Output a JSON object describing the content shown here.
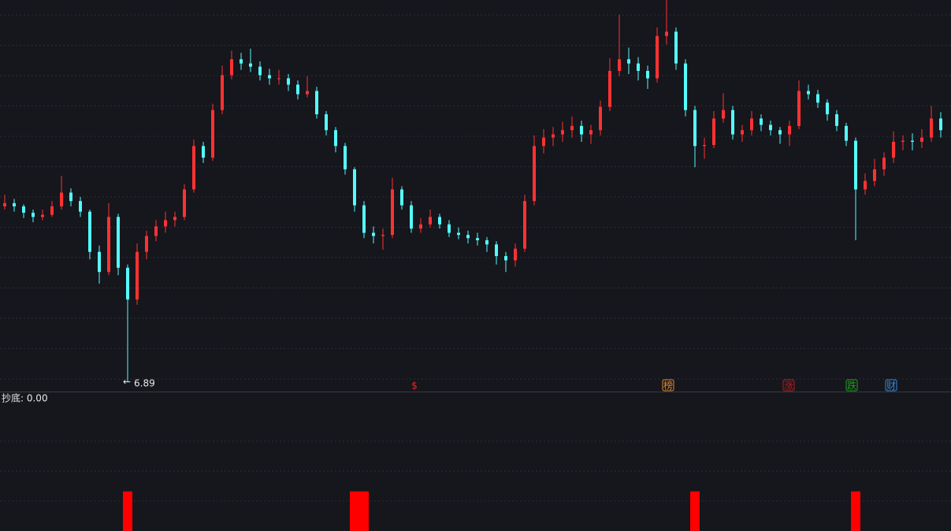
{
  "chart_data": {
    "type": "candlestick",
    "ylim": [
      6.8,
      10.5
    ],
    "up_color": "#ff3232",
    "down_color": "#54fcfc",
    "low_label_index": 13,
    "ohlc": [
      [
        8.55,
        8.66,
        8.52,
        8.58
      ],
      [
        8.58,
        8.62,
        8.5,
        8.55
      ],
      [
        8.55,
        8.57,
        8.44,
        8.49
      ],
      [
        8.49,
        8.52,
        8.4,
        8.45
      ],
      [
        8.45,
        8.52,
        8.42,
        8.47
      ],
      [
        8.47,
        8.6,
        8.45,
        8.55
      ],
      [
        8.55,
        8.84,
        8.52,
        8.68
      ],
      [
        8.68,
        8.72,
        8.55,
        8.6
      ],
      [
        8.6,
        8.64,
        8.45,
        8.5
      ],
      [
        8.5,
        8.52,
        8.05,
        8.12
      ],
      [
        8.12,
        8.18,
        7.82,
        7.93
      ],
      [
        7.93,
        8.58,
        7.9,
        8.45
      ],
      [
        8.45,
        8.48,
        7.9,
        7.97
      ],
      [
        7.97,
        8.0,
        6.89,
        7.67
      ],
      [
        7.67,
        8.2,
        7.62,
        8.12
      ],
      [
        8.12,
        8.32,
        8.05,
        8.27
      ],
      [
        8.27,
        8.42,
        8.22,
        8.36
      ],
      [
        8.36,
        8.5,
        8.3,
        8.42
      ],
      [
        8.42,
        8.5,
        8.36,
        8.45
      ],
      [
        8.45,
        8.76,
        8.42,
        8.71
      ],
      [
        8.71,
        9.18,
        8.68,
        9.12
      ],
      [
        9.12,
        9.16,
        8.96,
        9.01
      ],
      [
        9.01,
        9.52,
        8.98,
        9.46
      ],
      [
        9.46,
        9.88,
        9.42,
        9.79
      ],
      [
        9.79,
        10.02,
        9.75,
        9.94
      ],
      [
        9.94,
        10.0,
        9.84,
        9.9
      ],
      [
        9.9,
        10.04,
        9.82,
        9.87
      ],
      [
        9.87,
        9.92,
        9.74,
        9.79
      ],
      [
        9.79,
        9.85,
        9.7,
        9.76
      ],
      [
        9.76,
        9.84,
        9.7,
        9.76
      ],
      [
        9.76,
        9.8,
        9.64,
        9.7
      ],
      [
        9.7,
        9.74,
        9.56,
        9.61
      ],
      [
        9.61,
        9.78,
        9.58,
        9.64
      ],
      [
        9.64,
        9.68,
        9.38,
        9.42
      ],
      [
        9.42,
        9.45,
        9.22,
        9.27
      ],
      [
        9.27,
        9.3,
        9.06,
        9.12
      ],
      [
        9.12,
        9.15,
        8.85,
        8.9
      ],
      [
        8.9,
        8.92,
        8.5,
        8.56
      ],
      [
        8.56,
        8.6,
        8.25,
        8.3
      ],
      [
        8.3,
        8.36,
        8.2,
        8.27
      ],
      [
        8.27,
        8.34,
        8.14,
        8.28
      ],
      [
        8.28,
        8.82,
        8.25,
        8.71
      ],
      [
        8.71,
        8.74,
        8.52,
        8.56
      ],
      [
        8.56,
        8.6,
        8.3,
        8.34
      ],
      [
        8.34,
        8.44,
        8.3,
        8.38
      ],
      [
        8.38,
        8.52,
        8.35,
        8.45
      ],
      [
        8.45,
        8.48,
        8.34,
        8.38
      ],
      [
        8.38,
        8.42,
        8.26,
        8.3
      ],
      [
        8.3,
        8.35,
        8.24,
        8.28
      ],
      [
        8.28,
        8.32,
        8.2,
        8.25
      ],
      [
        8.25,
        8.3,
        8.18,
        8.23
      ],
      [
        8.23,
        8.26,
        8.12,
        8.19
      ],
      [
        8.19,
        8.22,
        8.0,
        8.08
      ],
      [
        8.08,
        8.12,
        7.93,
        8.04
      ],
      [
        8.04,
        8.2,
        7.98,
        8.15
      ],
      [
        8.15,
        8.66,
        8.12,
        8.6
      ],
      [
        8.6,
        9.22,
        8.56,
        9.12
      ],
      [
        9.12,
        9.28,
        9.05,
        9.2
      ],
      [
        9.2,
        9.3,
        9.12,
        9.23
      ],
      [
        9.23,
        9.35,
        9.16,
        9.27
      ],
      [
        9.27,
        9.4,
        9.2,
        9.31
      ],
      [
        9.31,
        9.36,
        9.16,
        9.23
      ],
      [
        9.23,
        9.32,
        9.14,
        9.27
      ],
      [
        9.27,
        9.55,
        9.22,
        9.49
      ],
      [
        9.49,
        9.95,
        9.45,
        9.83
      ],
      [
        9.83,
        10.36,
        9.78,
        9.94
      ],
      [
        9.94,
        10.05,
        9.8,
        9.9
      ],
      [
        9.9,
        9.96,
        9.74,
        9.83
      ],
      [
        9.83,
        9.88,
        9.66,
        9.76
      ],
      [
        9.76,
        10.24,
        9.72,
        10.16
      ],
      [
        10.16,
        10.5,
        10.08,
        10.2
      ],
      [
        10.2,
        10.24,
        9.84,
        9.9
      ],
      [
        9.9,
        9.94,
        9.4,
        9.46
      ],
      [
        9.46,
        9.5,
        8.92,
        9.12
      ],
      [
        9.12,
        9.2,
        9.0,
        9.13
      ],
      [
        9.13,
        9.45,
        9.1,
        9.38
      ],
      [
        9.38,
        9.62,
        9.34,
        9.46
      ],
      [
        9.46,
        9.5,
        9.18,
        9.23
      ],
      [
        9.23,
        9.32,
        9.16,
        9.27
      ],
      [
        9.27,
        9.45,
        9.22,
        9.38
      ],
      [
        9.38,
        9.42,
        9.26,
        9.32
      ],
      [
        9.32,
        9.36,
        9.22,
        9.27
      ],
      [
        9.27,
        9.3,
        9.14,
        9.23
      ],
      [
        9.23,
        9.36,
        9.12,
        9.31
      ],
      [
        9.31,
        9.74,
        9.28,
        9.64
      ],
      [
        9.64,
        9.7,
        9.56,
        9.61
      ],
      [
        9.61,
        9.65,
        9.48,
        9.53
      ],
      [
        9.53,
        9.56,
        9.36,
        9.42
      ],
      [
        9.42,
        9.46,
        9.26,
        9.31
      ],
      [
        9.31,
        9.34,
        9.12,
        9.17
      ],
      [
        9.17,
        9.2,
        8.23,
        8.71
      ],
      [
        8.71,
        8.86,
        8.66,
        8.79
      ],
      [
        8.79,
        9.0,
        8.74,
        8.9
      ],
      [
        8.9,
        9.06,
        8.84,
        9.01
      ],
      [
        9.01,
        9.26,
        8.96,
        9.16
      ],
      [
        9.16,
        9.22,
        9.08,
        9.17
      ],
      [
        9.17,
        9.24,
        9.08,
        9.16
      ],
      [
        9.16,
        9.28,
        9.1,
        9.2
      ],
      [
        9.2,
        9.5,
        9.16,
        9.38
      ],
      [
        9.38,
        9.44,
        9.2,
        9.27
      ]
    ],
    "markers": [
      {
        "label": "$",
        "color": "#ff2020"
      },
      {
        "label": "榜",
        "color": "#e08a2a"
      },
      {
        "label": "涨",
        "color": "#b02020"
      },
      {
        "label": "跌",
        "color": "#20a020"
      },
      {
        "label": "财",
        "color": "#3a8ad8"
      }
    ],
    "indicator": {
      "title": "抄底: 0.00",
      "color": "#ff0000",
      "ylim": [
        0,
        3.5
      ],
      "values": [
        0,
        0,
        0,
        0,
        0,
        0,
        0,
        0,
        0,
        0,
        0,
        0,
        0,
        1,
        0,
        0,
        0,
        0,
        0,
        0,
        0,
        0,
        0,
        0,
        0,
        0,
        0,
        0,
        0,
        0,
        0,
        0,
        0,
        0,
        0,
        0,
        0,
        1,
        1,
        0,
        0,
        0,
        0,
        0,
        0,
        0,
        0,
        0,
        0,
        0,
        0,
        0,
        0,
        0,
        0,
        0,
        0,
        0,
        0,
        0,
        0,
        0,
        0,
        0,
        0,
        0,
        0,
        0,
        0,
        0,
        0,
        0,
        0,
        1,
        0,
        0,
        0,
        0,
        0,
        0,
        0,
        0,
        0,
        0,
        0,
        0,
        0,
        0,
        0,
        0,
        1,
        0,
        0,
        0,
        0,
        0,
        0,
        0,
        0,
        0
      ]
    }
  }
}
